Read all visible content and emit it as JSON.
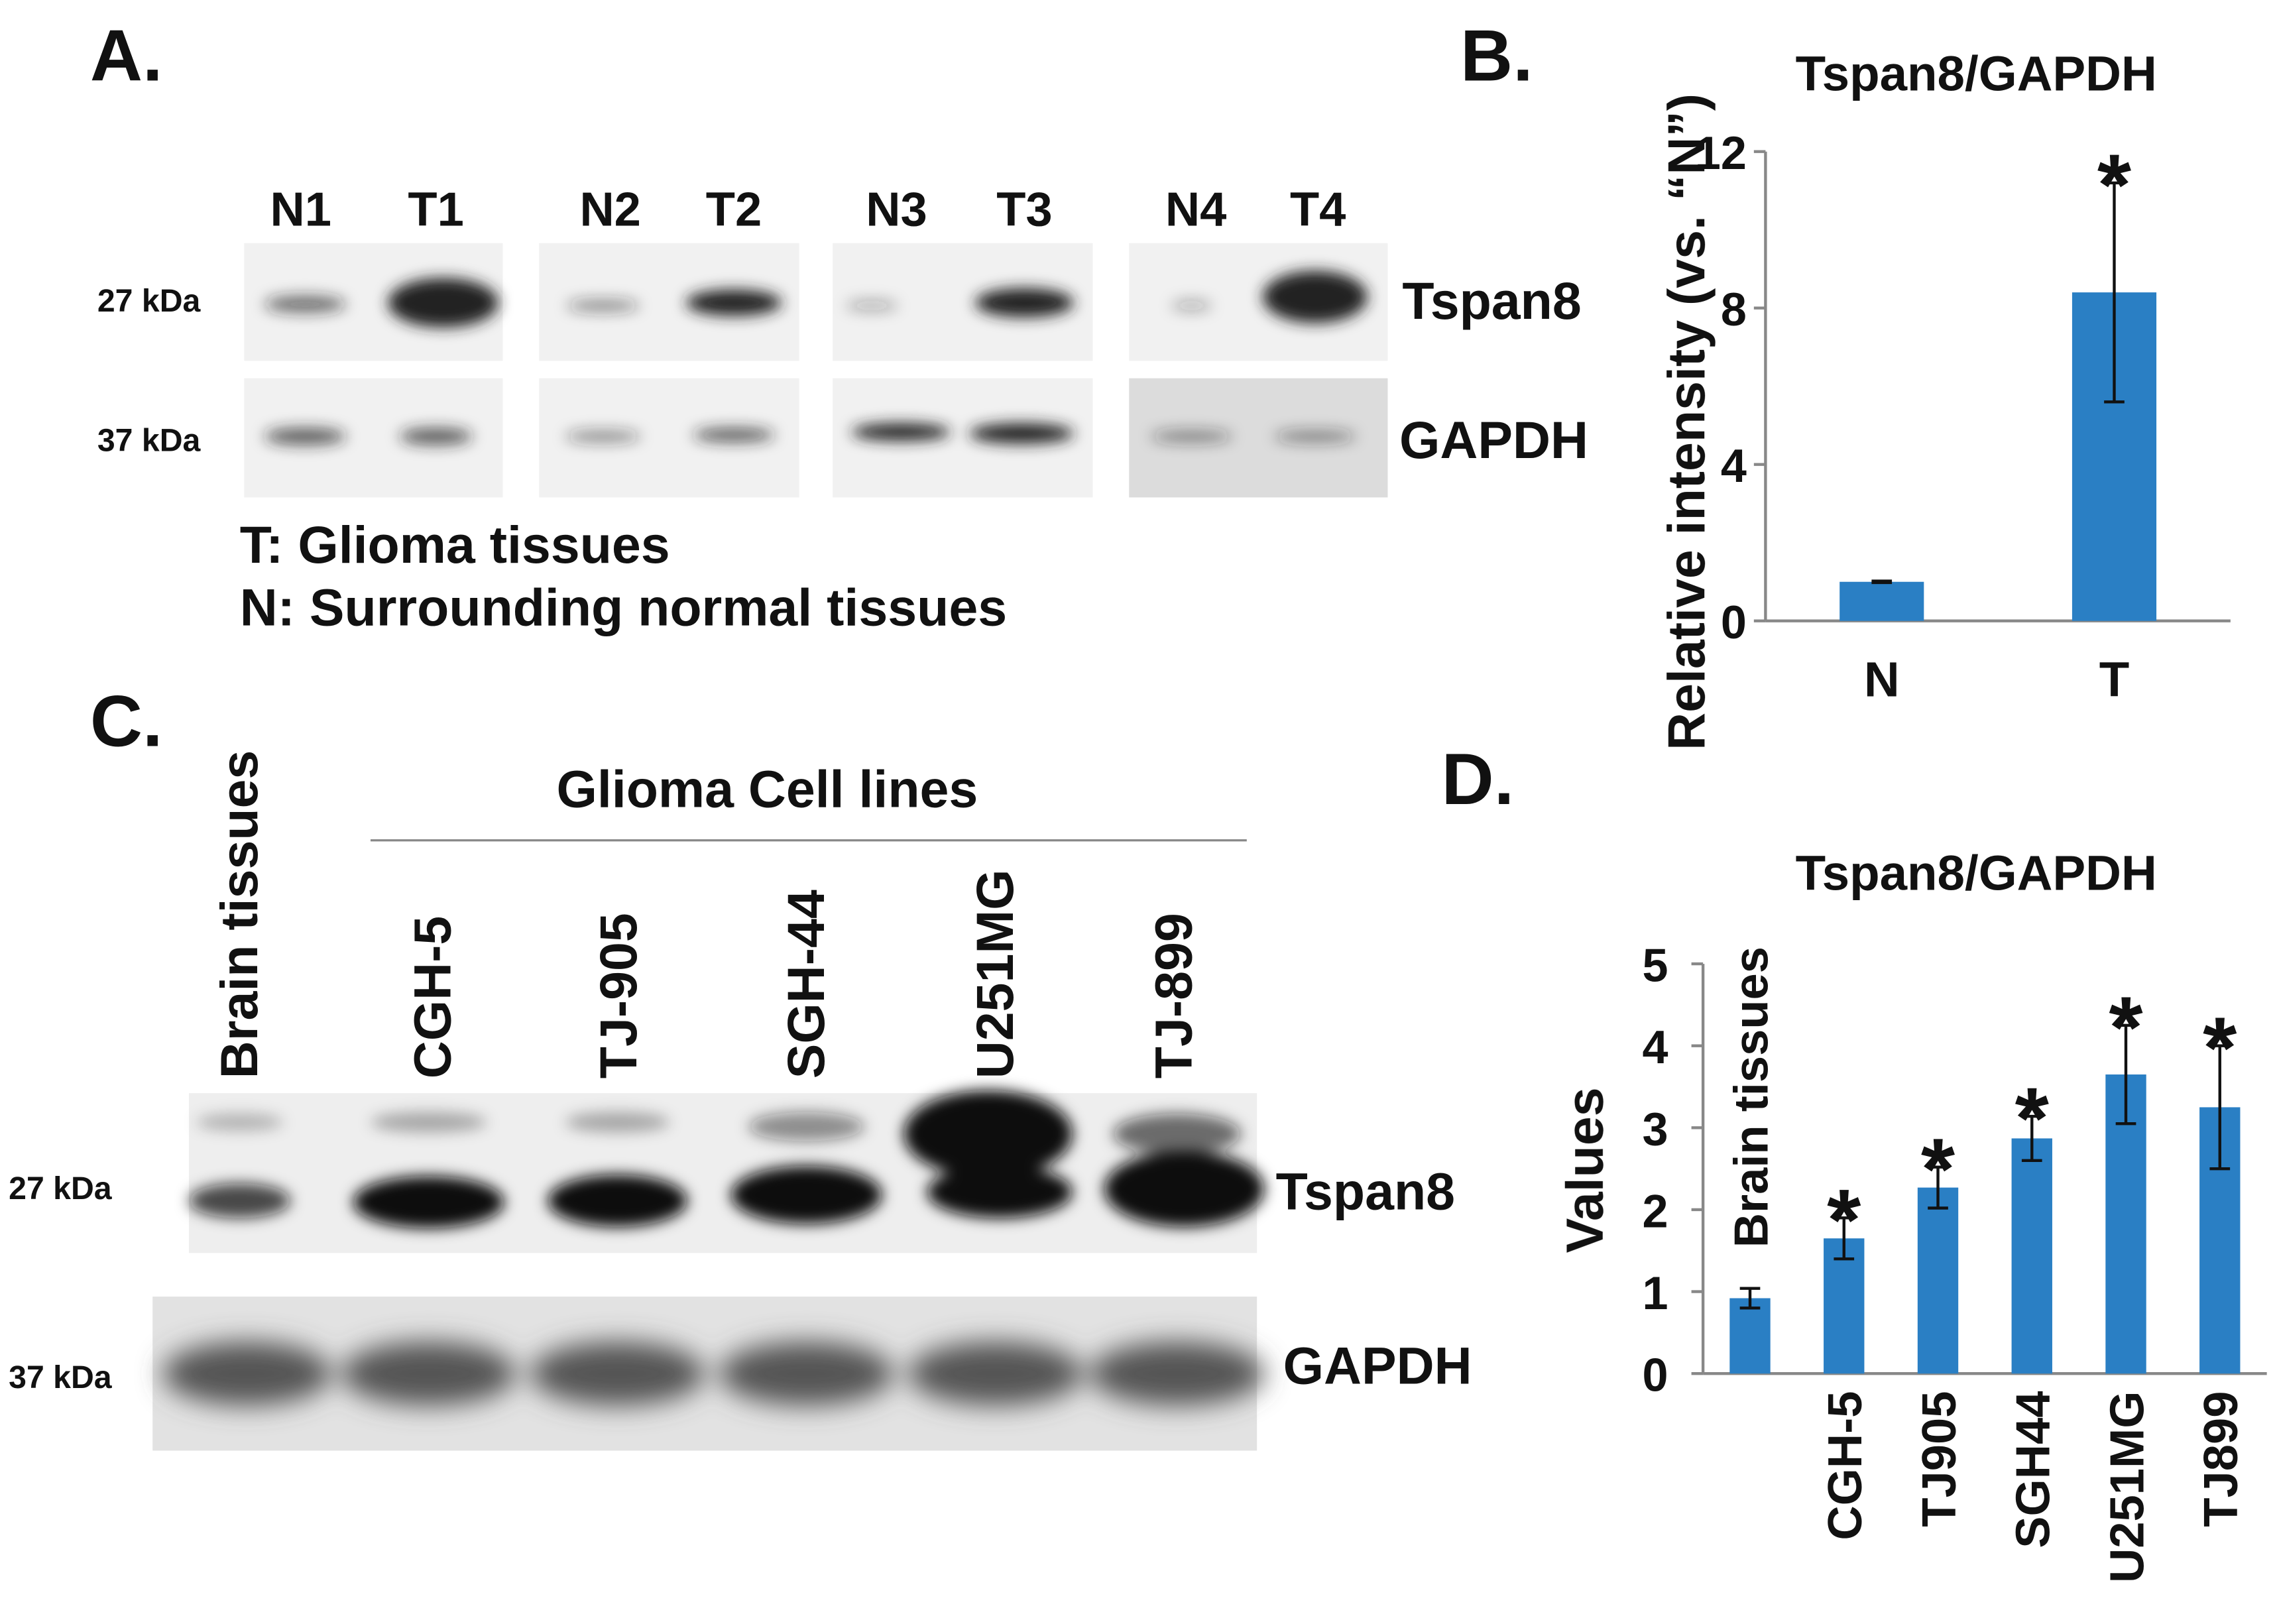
{
  "panels": {
    "a": "A.",
    "b": "B.",
    "c": "C.",
    "d": "D."
  },
  "blots": {
    "a": {
      "lanes": [
        "N1",
        "T1",
        "N2",
        "T2",
        "N3",
        "T3",
        "N4",
        "T4"
      ],
      "markers": [
        "27 kDa",
        "37 kDa"
      ],
      "proteins": [
        "Tspan8",
        "GAPDH"
      ],
      "legend": [
        "T: Glioma tissues",
        "N: Surrounding normal tissues"
      ]
    },
    "c": {
      "group": "Glioma Cell lines",
      "lanes": [
        "Brain tissues",
        "CGH-5",
        "TJ-905",
        "SGH-44",
        "U251MG",
        "TJ-899"
      ],
      "markers": [
        "27 kDa",
        "37 kDa"
      ],
      "proteins": [
        "Tspan8",
        "GAPDH"
      ]
    }
  },
  "chart_data": [
    {
      "type": "bar",
      "title": "Tspan8/GAPDH",
      "y_label": "Relative intensity (vs. “N”)",
      "categories": [
        "N",
        "T"
      ],
      "values": [
        1.0,
        8.4
      ],
      "errors": [
        0.02,
        2.8
      ],
      "annotations": [
        null,
        "*"
      ],
      "color": "#2a7fc4",
      "ylim": [
        0,
        12
      ],
      "yticks": [
        0,
        4,
        8,
        12
      ]
    },
    {
      "type": "bar",
      "title": "Tspan8/GAPDH",
      "y_label": "Values",
      "categories": [
        "Brain tissues",
        "CGH-5",
        "TJ905",
        "SGH44",
        "U251MG",
        "TJ899"
      ],
      "values": [
        0.92,
        1.65,
        2.27,
        2.87,
        3.65,
        3.25
      ],
      "errors": [
        0.12,
        0.25,
        0.25,
        0.27,
        0.6,
        0.75
      ],
      "annotations": [
        null,
        "*",
        "*",
        "*",
        "*",
        "*"
      ],
      "color": "#2a7fc4",
      "ylim": [
        0,
        5
      ],
      "yticks": [
        0,
        1,
        2,
        3,
        4,
        5
      ]
    }
  ]
}
